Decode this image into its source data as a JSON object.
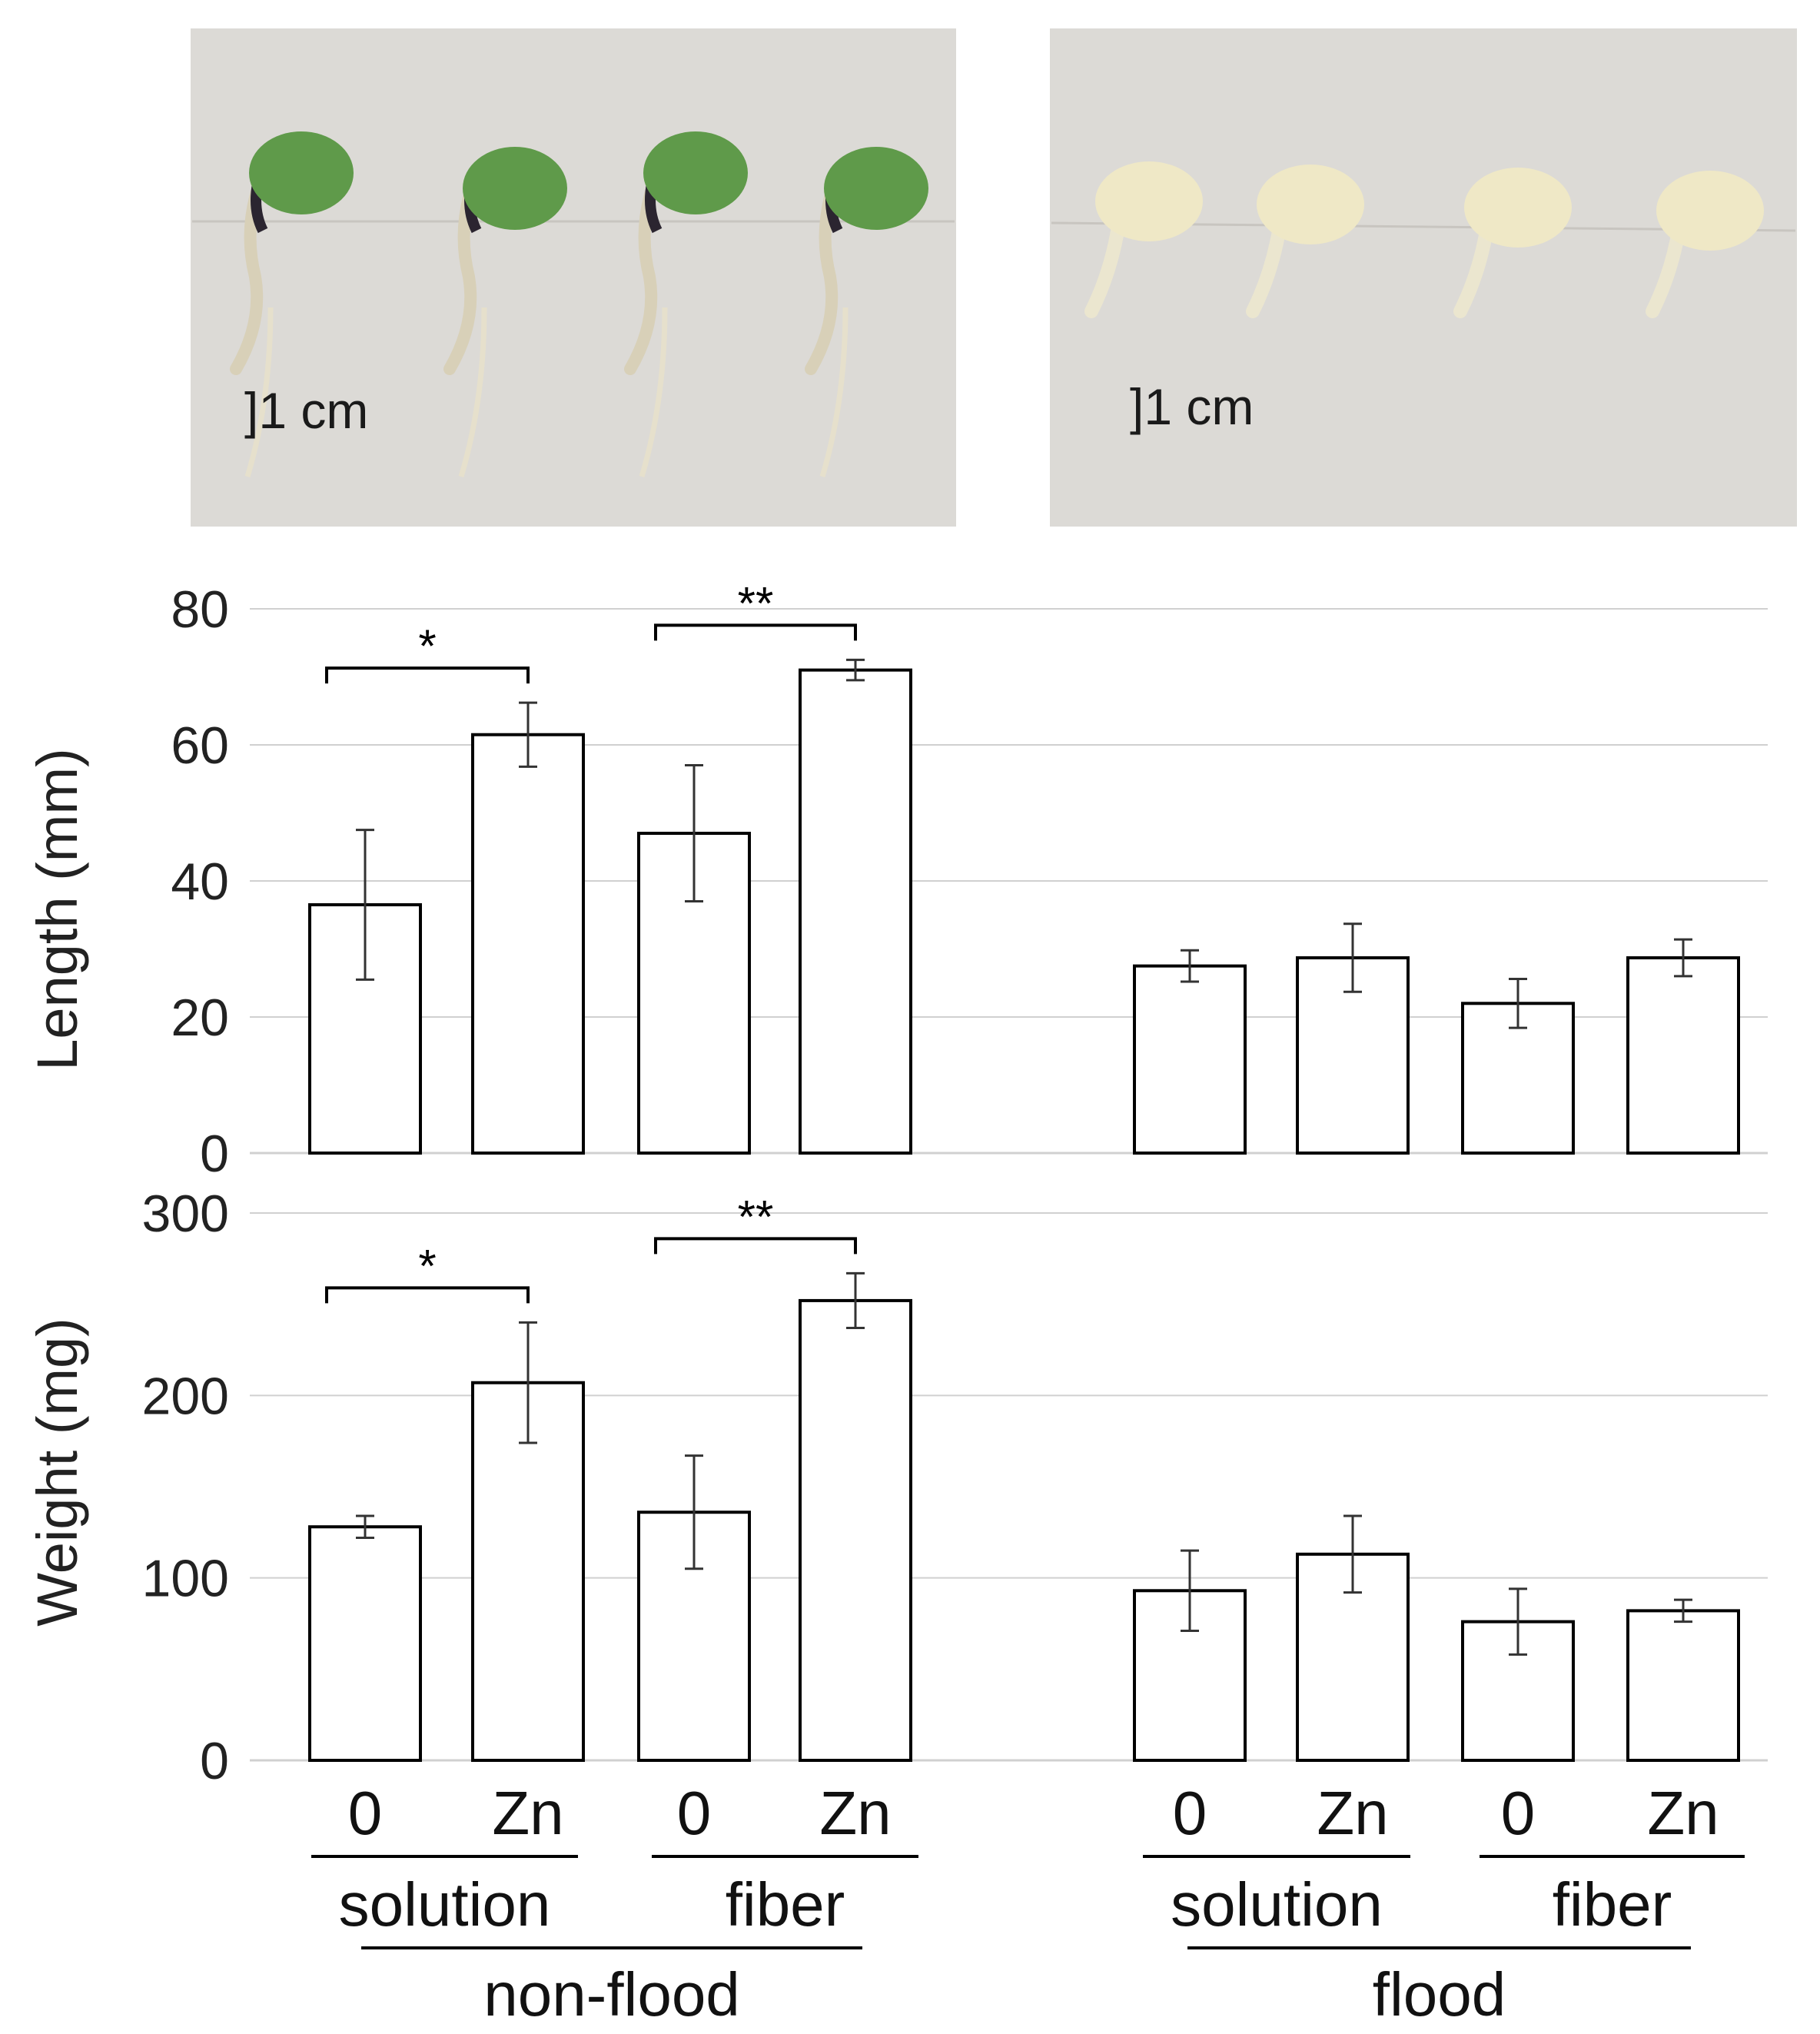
{
  "photos": {
    "non_flood_scale": "]1 cm",
    "flood_scale": "]1 cm",
    "non_flood_seedling_color": "#5f9a4a",
    "flood_seedling_color": "#efe8c6",
    "background_color": "#dcdad6"
  },
  "chart_data": [
    {
      "type": "bar",
      "ylabel": "Length (mm)",
      "ylim": [
        0,
        80
      ],
      "yticks": [
        0,
        20,
        40,
        60,
        80
      ],
      "grid": true,
      "categories": [
        "non-flood solution 0",
        "non-flood solution Zn",
        "non-flood fiber 0",
        "non-flood fiber Zn",
        "flood solution 0",
        "flood solution Zn",
        "flood fiber 0",
        "flood fiber Zn"
      ],
      "values": [
        36.5,
        61.5,
        47,
        71,
        27.5,
        28.7,
        22,
        28.7
      ],
      "errors": [
        11,
        4.7,
        10,
        1.5,
        2.3,
        5,
        3.6,
        2.7
      ],
      "significance": [
        {
          "from": 0,
          "to": 1,
          "label": "*"
        },
        {
          "from": 2,
          "to": 3,
          "label": "**"
        }
      ]
    },
    {
      "type": "bar",
      "ylabel": "Weight (mg)",
      "ylim": [
        0,
        300
      ],
      "yticks": [
        0,
        100,
        200,
        300
      ],
      "grid": true,
      "categories": [
        "non-flood solution 0",
        "non-flood solution Zn",
        "non-flood fiber 0",
        "non-flood fiber Zn",
        "flood solution 0",
        "flood solution Zn",
        "flood fiber 0",
        "flood fiber Zn"
      ],
      "values": [
        128,
        207,
        136,
        252,
        93,
        113,
        76,
        82
      ],
      "errors": [
        6,
        33,
        31,
        15,
        22,
        21,
        18,
        6
      ],
      "significance": [
        {
          "from": 0,
          "to": 1,
          "label": "*"
        },
        {
          "from": 2,
          "to": 3,
          "label": "**"
        }
      ]
    }
  ],
  "x_axis": {
    "treatment_labels": [
      "0",
      "Zn",
      "0",
      "Zn",
      "0",
      "Zn",
      "0",
      "Zn"
    ],
    "media_labels": [
      "solution",
      "fiber",
      "solution",
      "fiber"
    ],
    "condition_labels": [
      "non-flood",
      "flood"
    ]
  }
}
